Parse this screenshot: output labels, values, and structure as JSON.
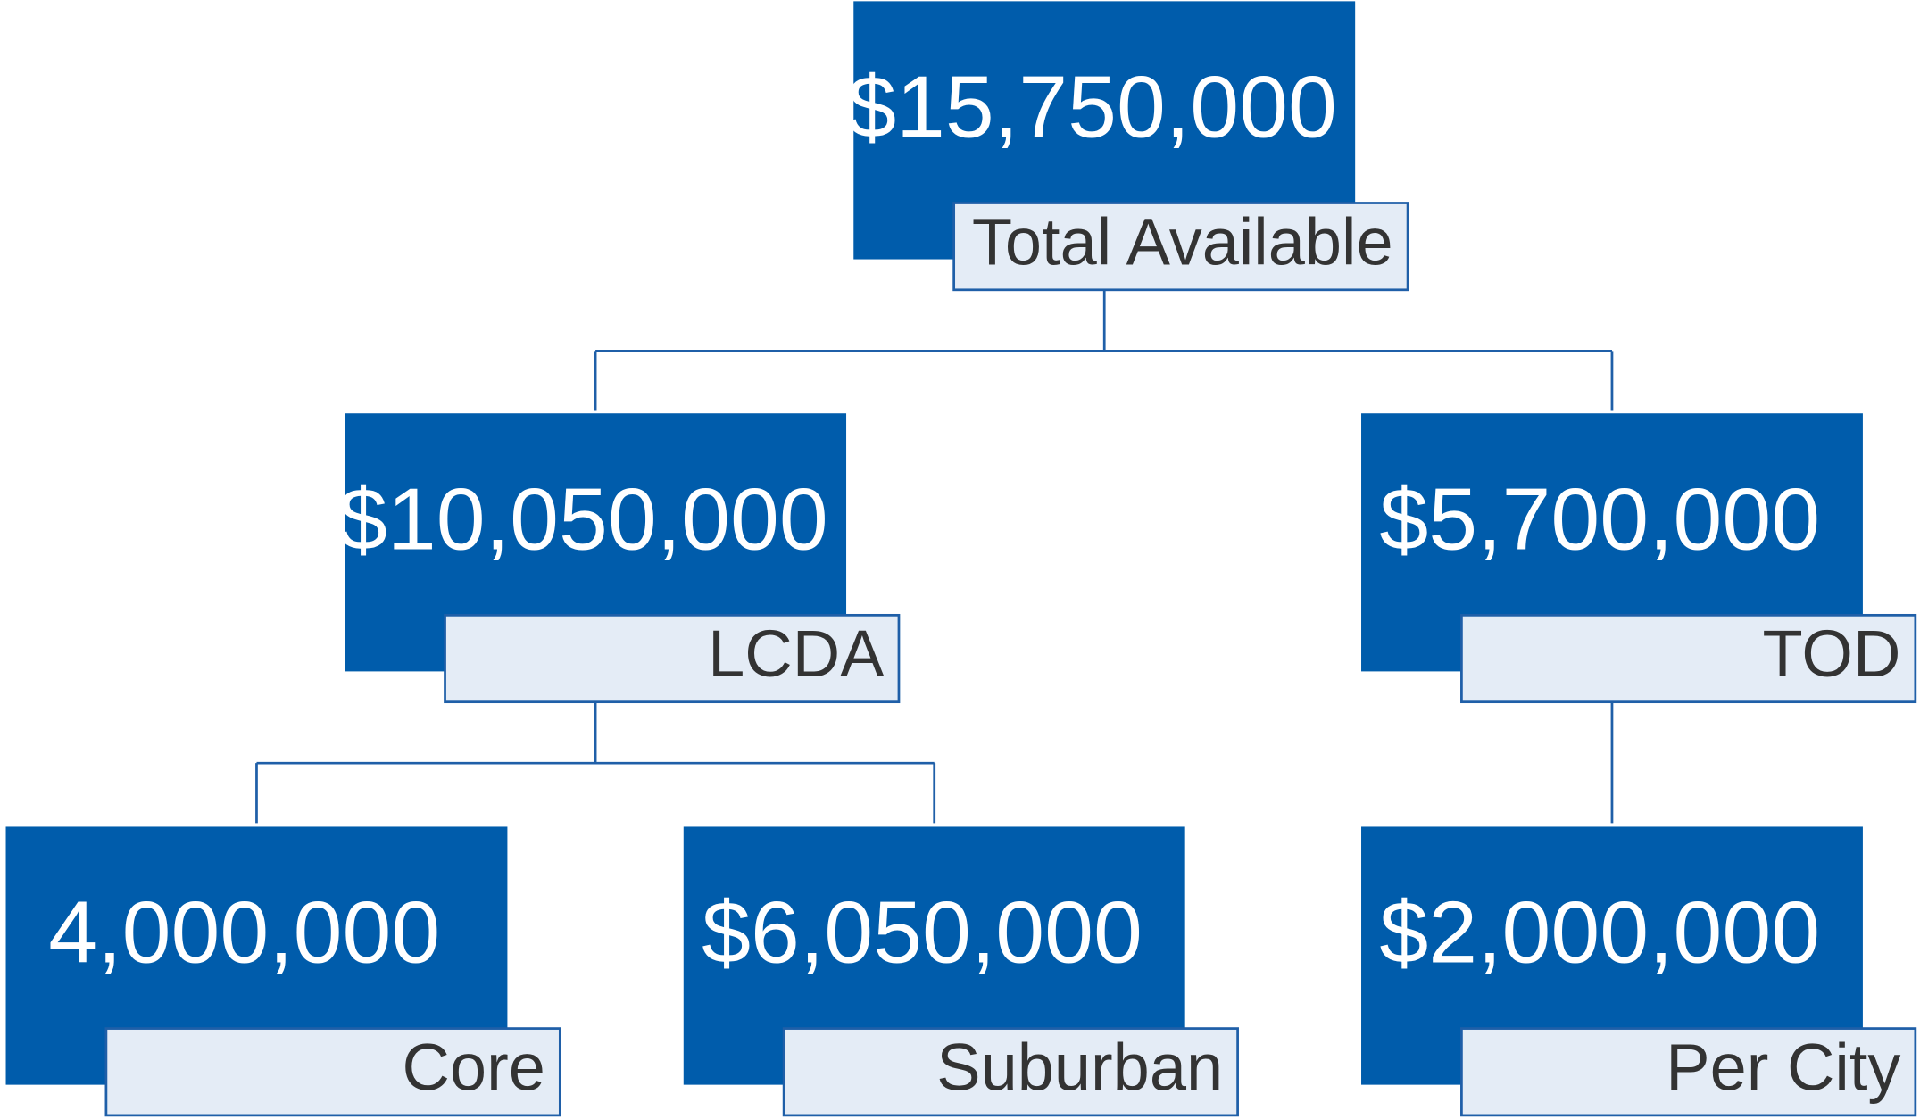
{
  "nodes": [
    {
      "value": "$15,750,000",
      "label": "Total Available"
    },
    {
      "value": "$10,050,000",
      "label": "LCDA"
    },
    {
      "value": "$5,700,000",
      "label": "TOD"
    },
    {
      "value": "4,000,000",
      "label": "Core"
    },
    {
      "value": "$6,050,000",
      "label": "Suburban"
    },
    {
      "value": "$2,000,000",
      "label": "Per City"
    }
  ]
}
